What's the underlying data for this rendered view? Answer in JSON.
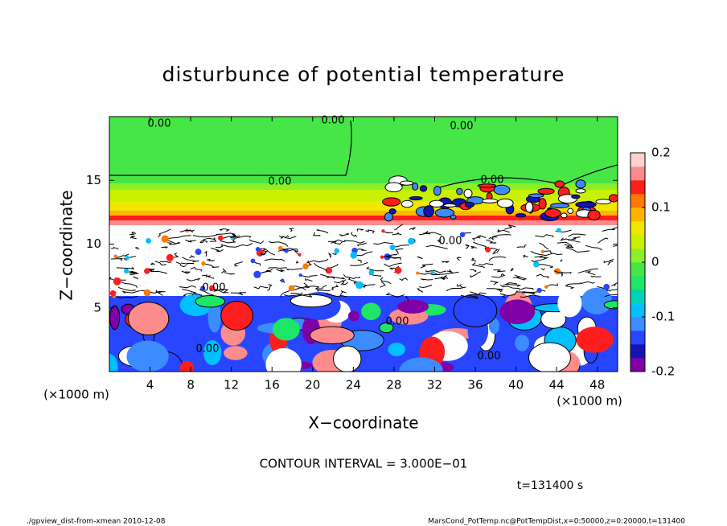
{
  "chart_data": {
    "type": "contour",
    "title": "disturbunce of potential temperature",
    "x_label": "X−coordinate",
    "y_label": "Z−coordinate",
    "x_unit_left": "(×1000 m)",
    "x_unit_right": "(×1000 m)",
    "xlim": [
      0,
      50
    ],
    "xticks": [
      4,
      8,
      12,
      16,
      20,
      24,
      28,
      32,
      36,
      40,
      44,
      48
    ],
    "ylim": [
      0,
      20
    ],
    "yticks": [
      5,
      10,
      15
    ],
    "colorbar_lim": [
      -0.2,
      0.2
    ],
    "colorbar_ticks": [
      0.2,
      0.1,
      0,
      -0.1,
      -0.2
    ],
    "colorscale": [
      "#8000a8",
      "#1414b4",
      "#2846ff",
      "#3c8cff",
      "#00c0ff",
      "#00d2b4",
      "#1ee664",
      "#46e646",
      "#8cf028",
      "#c8f000",
      "#f0e600",
      "#ffb400",
      "#ff7800",
      "#ff1e1e",
      "#ff8c8c",
      "#ffd2d2"
    ],
    "contour_labels": [
      "0.00",
      "0.00",
      "0.00",
      "0.00",
      "0.00",
      "0.00",
      "0.00",
      "0.00",
      "0.00",
      "0.00"
    ],
    "contour_interval": "CONTOUR INTERVAL = 3.000E−01",
    "time_label": "t=131400 s",
    "footer_left": "./gpview_dist-from-xmean  2010-12-08",
    "footer_right": "MarsCond_PotTemp.nc@PotTempDist,x=0:50000,z=0:20000,t=131400"
  }
}
